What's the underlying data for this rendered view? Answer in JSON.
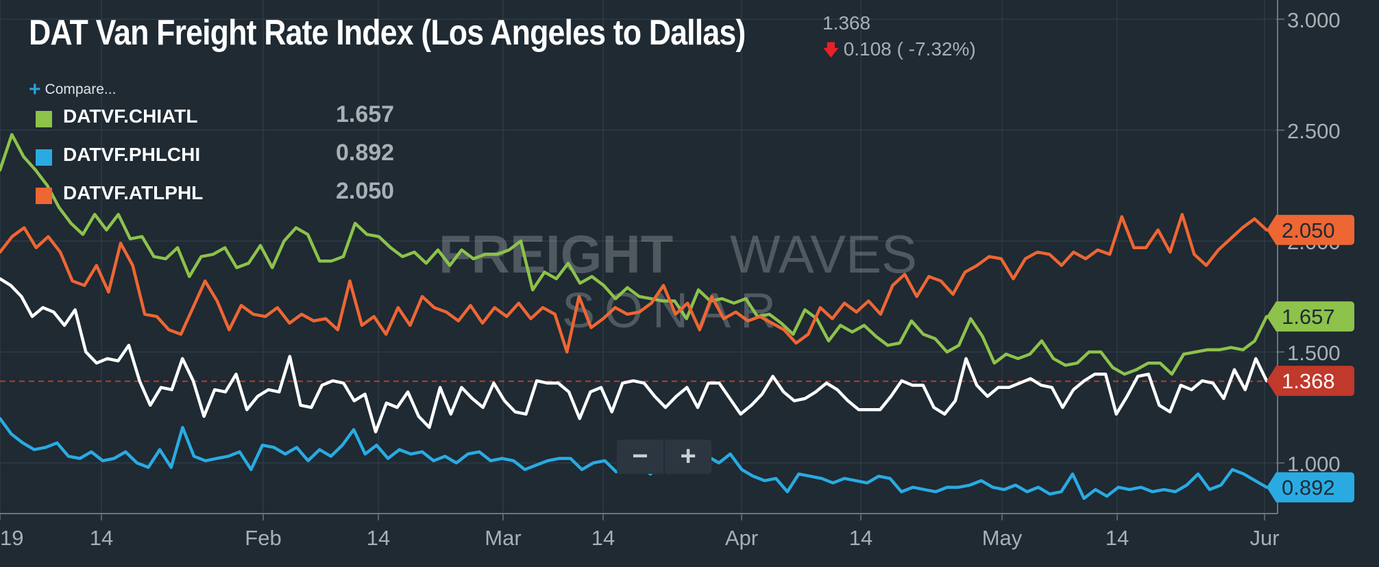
{
  "header": {
    "title": "DAT Van Freight Rate Index (Los Angeles to Dallas)",
    "last_value": "1.368",
    "change_text": "0.108 ( -7.32%)",
    "change_icon": "down-arrow-icon"
  },
  "compare_label": "Compare...",
  "legend": [
    {
      "name": "DATVF.CHIATL",
      "value": "1.657",
      "color": "#8dc24b"
    },
    {
      "name": "DATVF.PHLCHI",
      "value": "0.892",
      "color": "#29abe2"
    },
    {
      "name": "DATVF.ATLPHL",
      "value": "2.050",
      "color": "#ee6633"
    }
  ],
  "watermark": {
    "line1a": "FREIGHT",
    "line1b": "WAVES",
    "line2": "SONAR"
  },
  "zoom": {
    "minus": "−",
    "plus": "+"
  },
  "chart_data": {
    "type": "line",
    "x_tick_labels": [
      "19",
      "14",
      "Feb",
      "14",
      "Mar",
      "14",
      "Apr",
      "14",
      "May",
      "14",
      "Jur"
    ],
    "y_tick_labels": [
      "3.000",
      "2.500",
      "2.000",
      "1.500",
      "1.000"
    ],
    "ylim": [
      0.78,
      3.05
    ],
    "reference_line": {
      "value": 1.368,
      "label": "1.368",
      "color": "#c0392b",
      "style": "dashed"
    },
    "series": [
      {
        "name": "DAT Van Freight Rate Index (Los Angeles to Dallas)",
        "color": "#ffffff",
        "end_label": "1.368",
        "values": [
          1.83,
          1.8,
          1.75,
          1.66,
          1.7,
          1.68,
          1.62,
          1.69,
          1.5,
          1.45,
          1.47,
          1.46,
          1.53,
          1.37,
          1.26,
          1.34,
          1.33,
          1.47,
          1.37,
          1.21,
          1.33,
          1.32,
          1.4,
          1.24,
          1.3,
          1.33,
          1.32,
          1.48,
          1.26,
          1.25,
          1.35,
          1.37,
          1.36,
          1.28,
          1.31,
          1.14,
          1.27,
          1.25,
          1.32,
          1.21,
          1.16,
          1.34,
          1.22,
          1.34,
          1.29,
          1.25,
          1.36,
          1.28,
          1.23,
          1.22,
          1.37,
          1.36,
          1.36,
          1.32,
          1.2,
          1.32,
          1.34,
          1.23,
          1.36,
          1.37,
          1.36,
          1.3,
          1.25,
          1.3,
          1.34,
          1.25,
          1.36,
          1.36,
          1.29,
          1.22,
          1.26,
          1.31,
          1.39,
          1.32,
          1.28,
          1.29,
          1.32,
          1.36,
          1.33,
          1.28,
          1.24,
          1.24,
          1.24,
          1.3,
          1.37,
          1.35,
          1.35,
          1.25,
          1.22,
          1.28,
          1.47,
          1.35,
          1.3,
          1.34,
          1.34,
          1.36,
          1.38,
          1.35,
          1.34,
          1.25,
          1.33,
          1.37,
          1.4,
          1.4,
          1.22,
          1.3,
          1.39,
          1.4,
          1.26,
          1.23,
          1.35,
          1.33,
          1.37,
          1.36,
          1.29,
          1.42,
          1.33,
          1.47,
          1.37
        ]
      },
      {
        "name": "DATVF.CHIATL",
        "color": "#8dc24b",
        "end_label": "1.657",
        "values": [
          2.32,
          2.48,
          2.38,
          2.32,
          2.25,
          2.15,
          2.08,
          2.03,
          2.12,
          2.05,
          2.12,
          2.01,
          2.02,
          1.93,
          1.92,
          1.97,
          1.84,
          1.93,
          1.94,
          1.97,
          1.88,
          1.9,
          1.98,
          1.88,
          2.0,
          2.06,
          2.03,
          1.91,
          1.91,
          1.93,
          2.08,
          2.03,
          2.02,
          1.97,
          1.93,
          1.95,
          1.9,
          1.96,
          1.89,
          1.96,
          1.92,
          1.94,
          1.94,
          1.96,
          2.0,
          1.78,
          1.86,
          1.83,
          1.9,
          1.81,
          1.84,
          1.8,
          1.74,
          1.79,
          1.75,
          1.74,
          1.73,
          1.73,
          1.65,
          1.78,
          1.73,
          1.74,
          1.72,
          1.74,
          1.66,
          1.67,
          1.63,
          1.58,
          1.69,
          1.65,
          1.55,
          1.62,
          1.59,
          1.62,
          1.57,
          1.53,
          1.54,
          1.64,
          1.58,
          1.56,
          1.5,
          1.53,
          1.65,
          1.57,
          1.45,
          1.49,
          1.47,
          1.49,
          1.55,
          1.47,
          1.44,
          1.45,
          1.5,
          1.5,
          1.43,
          1.4,
          1.42,
          1.45,
          1.45,
          1.4,
          1.49,
          1.5,
          1.51,
          1.51,
          1.52,
          1.51,
          1.55,
          1.66
        ]
      },
      {
        "name": "DATVF.PHLCHI",
        "color": "#29abe2",
        "end_label": "0.892",
        "values": [
          1.2,
          1.13,
          1.09,
          1.06,
          1.07,
          1.09,
          1.03,
          1.02,
          1.05,
          1.01,
          1.02,
          1.05,
          1.0,
          0.98,
          1.06,
          0.98,
          1.16,
          1.03,
          1.01,
          1.02,
          1.03,
          1.05,
          0.97,
          1.08,
          1.07,
          1.04,
          1.07,
          1.01,
          1.06,
          1.03,
          1.08,
          1.15,
          1.04,
          1.08,
          1.02,
          1.06,
          1.04,
          1.05,
          1.01,
          1.03,
          1.0,
          1.04,
          1.05,
          1.01,
          1.02,
          1.01,
          0.97,
          0.99,
          1.01,
          1.02,
          1.02,
          0.97,
          1.0,
          1.01,
          0.96,
          0.98,
          0.99,
          0.95,
          1.0,
          0.98,
          1.0,
          0.99,
          1.03,
          1.0,
          1.04,
          0.97,
          0.94,
          0.92,
          0.93,
          0.87,
          0.95,
          0.94,
          0.93,
          0.91,
          0.93,
          0.92,
          0.91,
          0.94,
          0.93,
          0.87,
          0.89,
          0.88,
          0.87,
          0.89,
          0.89,
          0.9,
          0.92,
          0.89,
          0.88,
          0.9,
          0.87,
          0.89,
          0.86,
          0.87,
          0.95,
          0.84,
          0.88,
          0.85,
          0.89,
          0.88,
          0.89,
          0.87,
          0.88,
          0.87,
          0.9,
          0.95,
          0.88,
          0.9,
          0.97,
          0.95,
          0.92,
          0.89
        ]
      },
      {
        "name": "DATVF.ATLPHL",
        "color": "#ee6633",
        "end_label": "2.050",
        "values": [
          1.95,
          2.02,
          2.06,
          1.97,
          2.02,
          1.95,
          1.82,
          1.8,
          1.89,
          1.77,
          1.99,
          1.89,
          1.67,
          1.66,
          1.6,
          1.58,
          1.7,
          1.82,
          1.73,
          1.6,
          1.71,
          1.67,
          1.66,
          1.7,
          1.63,
          1.67,
          1.64,
          1.65,
          1.6,
          1.82,
          1.62,
          1.66,
          1.58,
          1.7,
          1.62,
          1.75,
          1.7,
          1.68,
          1.64,
          1.71,
          1.63,
          1.7,
          1.66,
          1.72,
          1.65,
          1.7,
          1.67,
          1.5,
          1.75,
          1.61,
          1.65,
          1.7,
          1.67,
          1.68,
          1.72,
          1.8,
          1.67,
          1.72,
          1.6,
          1.75,
          1.65,
          1.68,
          1.64,
          1.66,
          1.63,
          1.6,
          1.54,
          1.58,
          1.7,
          1.65,
          1.72,
          1.68,
          1.73,
          1.67,
          1.8,
          1.85,
          1.75,
          1.84,
          1.82,
          1.76,
          1.86,
          1.89,
          1.93,
          1.92,
          1.83,
          1.92,
          1.95,
          1.94,
          1.89,
          1.95,
          1.92,
          1.96,
          1.94,
          2.11,
          1.97,
          1.97,
          2.05,
          1.95,
          2.12,
          1.94,
          1.89,
          1.96,
          2.01,
          2.06,
          2.1,
          2.05
        ]
      }
    ]
  }
}
